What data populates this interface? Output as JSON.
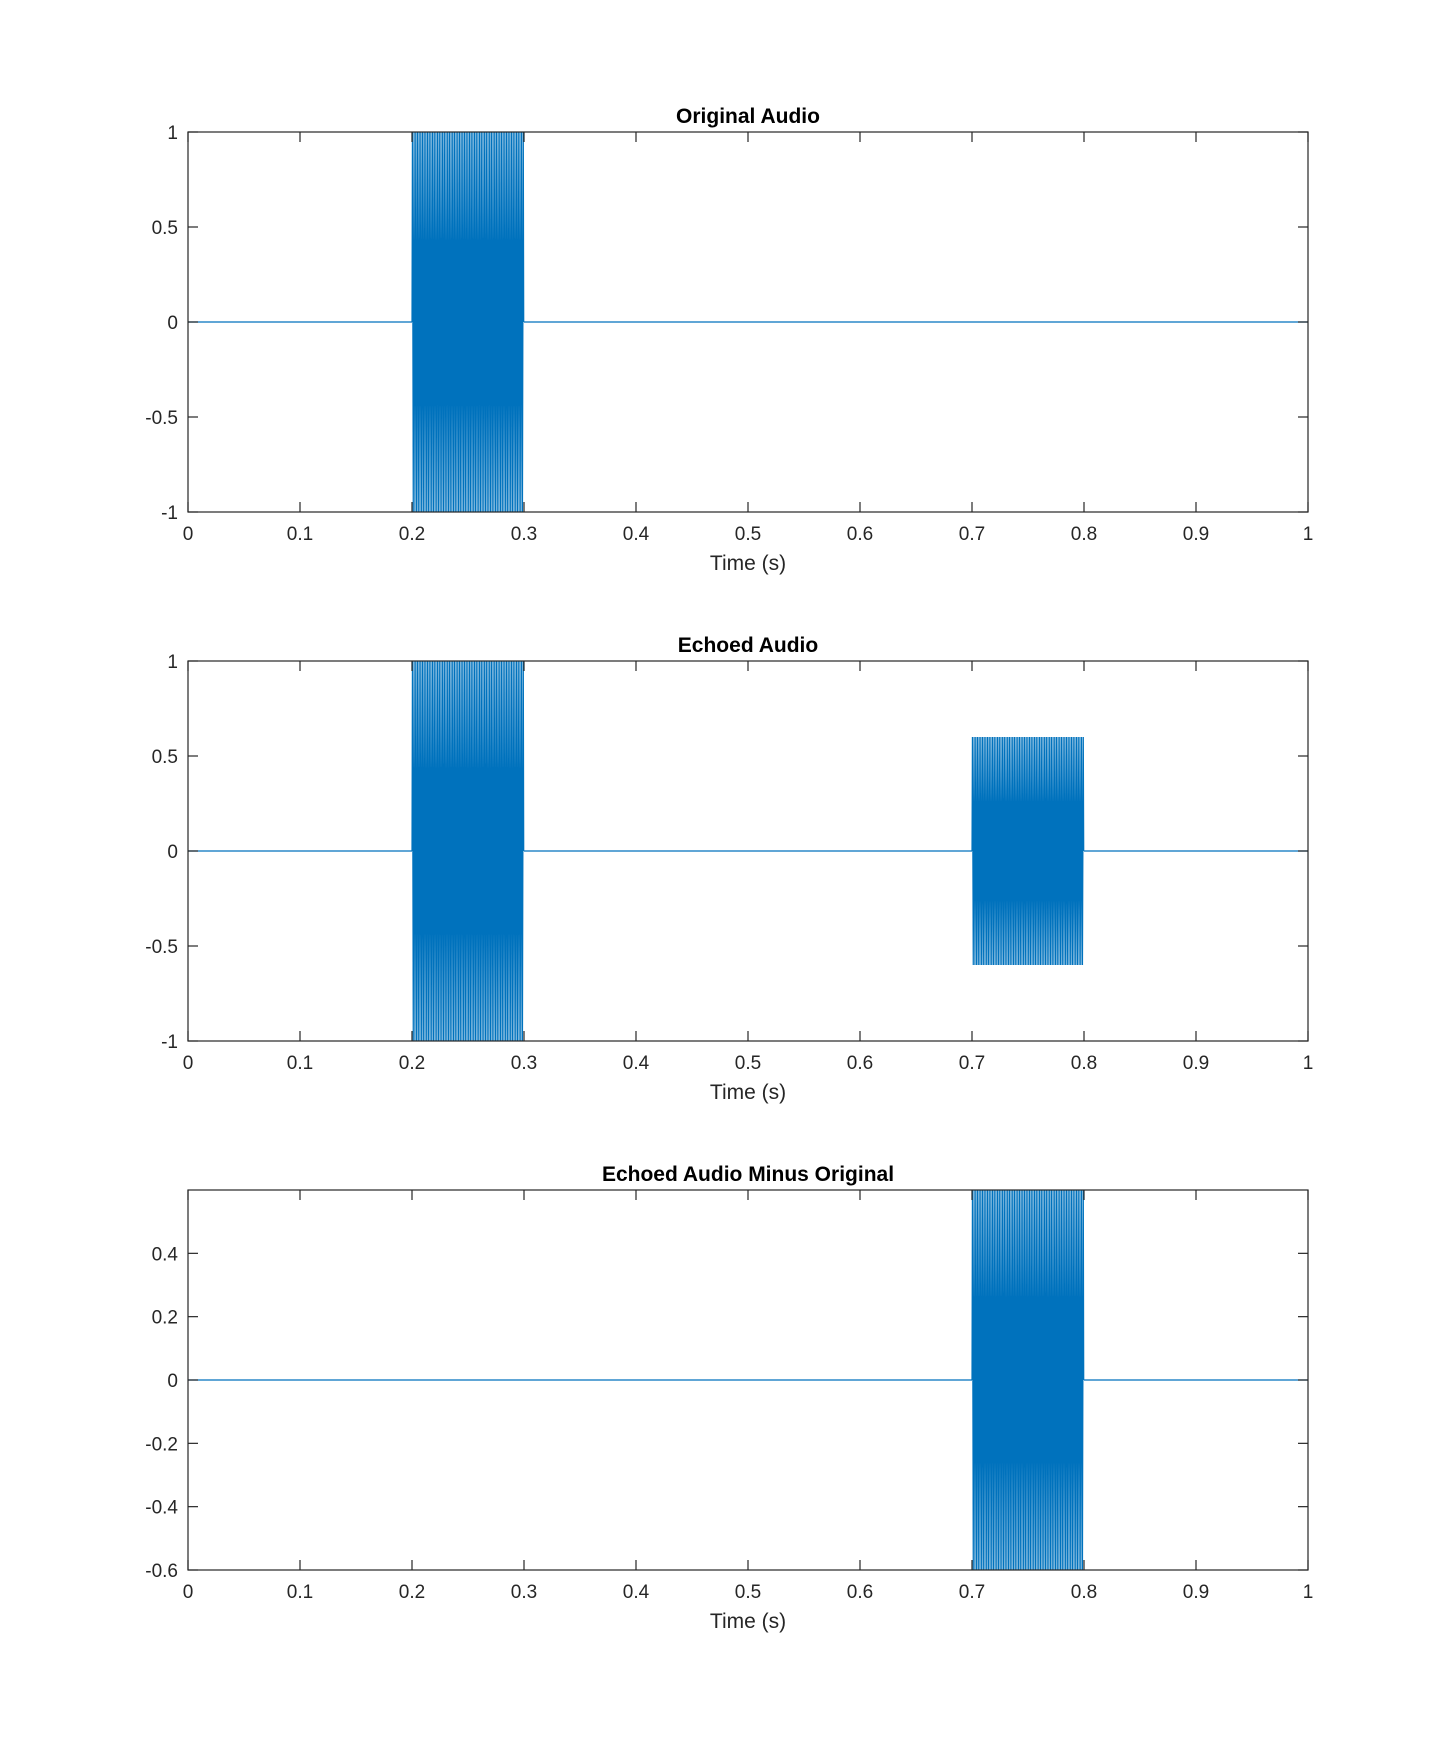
{
  "chart_data": [
    {
      "type": "line",
      "title": "Original Audio",
      "xlabel": "Time (s)",
      "ylabel": "",
      "xlim": [
        0,
        1
      ],
      "ylim": [
        -1,
        1
      ],
      "x_ticks": [
        0,
        0.1,
        0.2,
        0.3,
        0.4,
        0.5,
        0.6,
        0.7,
        0.8,
        0.9,
        1
      ],
      "x_tick_labels": [
        "0",
        "0.1",
        "0.2",
        "0.3",
        "0.4",
        "0.5",
        "0.6",
        "0.7",
        "0.8",
        "0.9",
        "1"
      ],
      "y_ticks": [
        -1,
        -0.5,
        0,
        0.5,
        1
      ],
      "y_tick_labels": [
        "-1",
        "-0.5",
        "0",
        "0.5",
        "1"
      ],
      "grid": false,
      "legend": "none",
      "line_color": "#0072BD",
      "series": [
        {
          "segments": [
            {
              "x_start": 0,
              "x_end": 0.2,
              "amplitude": 0
            },
            {
              "x_start": 0.2,
              "x_end": 0.3,
              "amplitude": 1
            },
            {
              "x_start": 0.3,
              "x_end": 1,
              "amplitude": 0
            }
          ]
        }
      ]
    },
    {
      "type": "line",
      "title": "Echoed Audio",
      "xlabel": "Time (s)",
      "ylabel": "",
      "xlim": [
        0,
        1
      ],
      "ylim": [
        -1,
        1
      ],
      "x_ticks": [
        0,
        0.1,
        0.2,
        0.3,
        0.4,
        0.5,
        0.6,
        0.7,
        0.8,
        0.9,
        1
      ],
      "x_tick_labels": [
        "0",
        "0.1",
        "0.2",
        "0.3",
        "0.4",
        "0.5",
        "0.6",
        "0.7",
        "0.8",
        "0.9",
        "1"
      ],
      "y_ticks": [
        -1,
        -0.5,
        0,
        0.5,
        1
      ],
      "y_tick_labels": [
        "-1",
        "-0.5",
        "0",
        "0.5",
        "1"
      ],
      "grid": false,
      "legend": "none",
      "line_color": "#0072BD",
      "series": [
        {
          "segments": [
            {
              "x_start": 0,
              "x_end": 0.2,
              "amplitude": 0
            },
            {
              "x_start": 0.2,
              "x_end": 0.3,
              "amplitude": 1
            },
            {
              "x_start": 0.3,
              "x_end": 0.7,
              "amplitude": 0
            },
            {
              "x_start": 0.7,
              "x_end": 0.8,
              "amplitude": 0.6
            },
            {
              "x_start": 0.8,
              "x_end": 1,
              "amplitude": 0
            }
          ]
        }
      ]
    },
    {
      "type": "line",
      "title": "Echoed Audio Minus Original",
      "xlabel": "Time (s)",
      "ylabel": "",
      "xlim": [
        0,
        1
      ],
      "ylim": [
        -0.6,
        0.6
      ],
      "x_ticks": [
        0,
        0.1,
        0.2,
        0.3,
        0.4,
        0.5,
        0.6,
        0.7,
        0.8,
        0.9,
        1
      ],
      "x_tick_labels": [
        "0",
        "0.1",
        "0.2",
        "0.3",
        "0.4",
        "0.5",
        "0.6",
        "0.7",
        "0.8",
        "0.9",
        "1"
      ],
      "y_ticks": [
        -0.6,
        -0.4,
        -0.2,
        0,
        0.2,
        0.4
      ],
      "y_tick_labels": [
        "-0.6",
        "-0.4",
        "-0.2",
        "0",
        "0.2",
        "0.4"
      ],
      "grid": false,
      "legend": "none",
      "line_color": "#0072BD",
      "series": [
        {
          "segments": [
            {
              "x_start": 0,
              "x_end": 0.7,
              "amplitude": 0
            },
            {
              "x_start": 0.7,
              "x_end": 0.8,
              "amplitude": 0.6
            },
            {
              "x_start": 0.8,
              "x_end": 1,
              "amplitude": 0
            }
          ]
        }
      ]
    }
  ]
}
